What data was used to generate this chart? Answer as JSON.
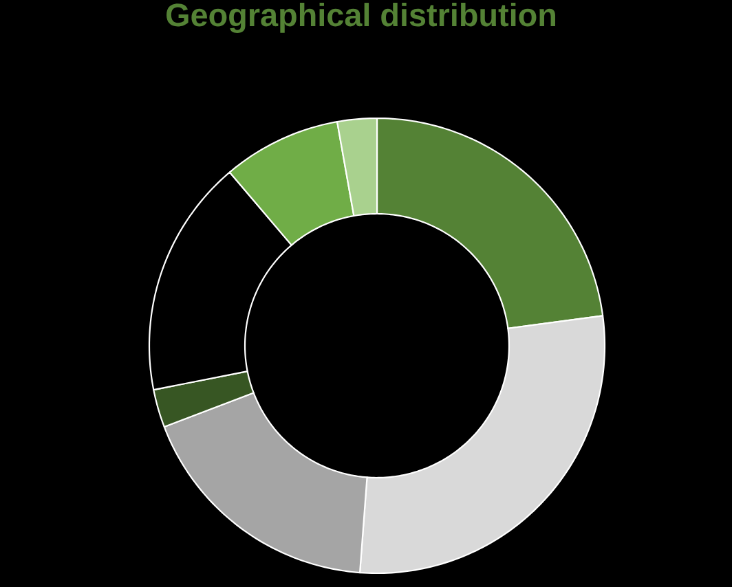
{
  "chart_data": {
    "type": "donut",
    "title": "Geographical distribution",
    "categories": [
      null,
      null,
      null,
      null,
      null,
      null,
      null
    ],
    "values": [
      22.9,
      28.3,
      18.0,
      2.7,
      16.9,
      8.4,
      2.8
    ],
    "colors": [
      "#548235",
      "#d9d9d9",
      "#a5a5a5",
      "#375623",
      "#000000",
      "#70ad47",
      "#a9d18e"
    ]
  }
}
